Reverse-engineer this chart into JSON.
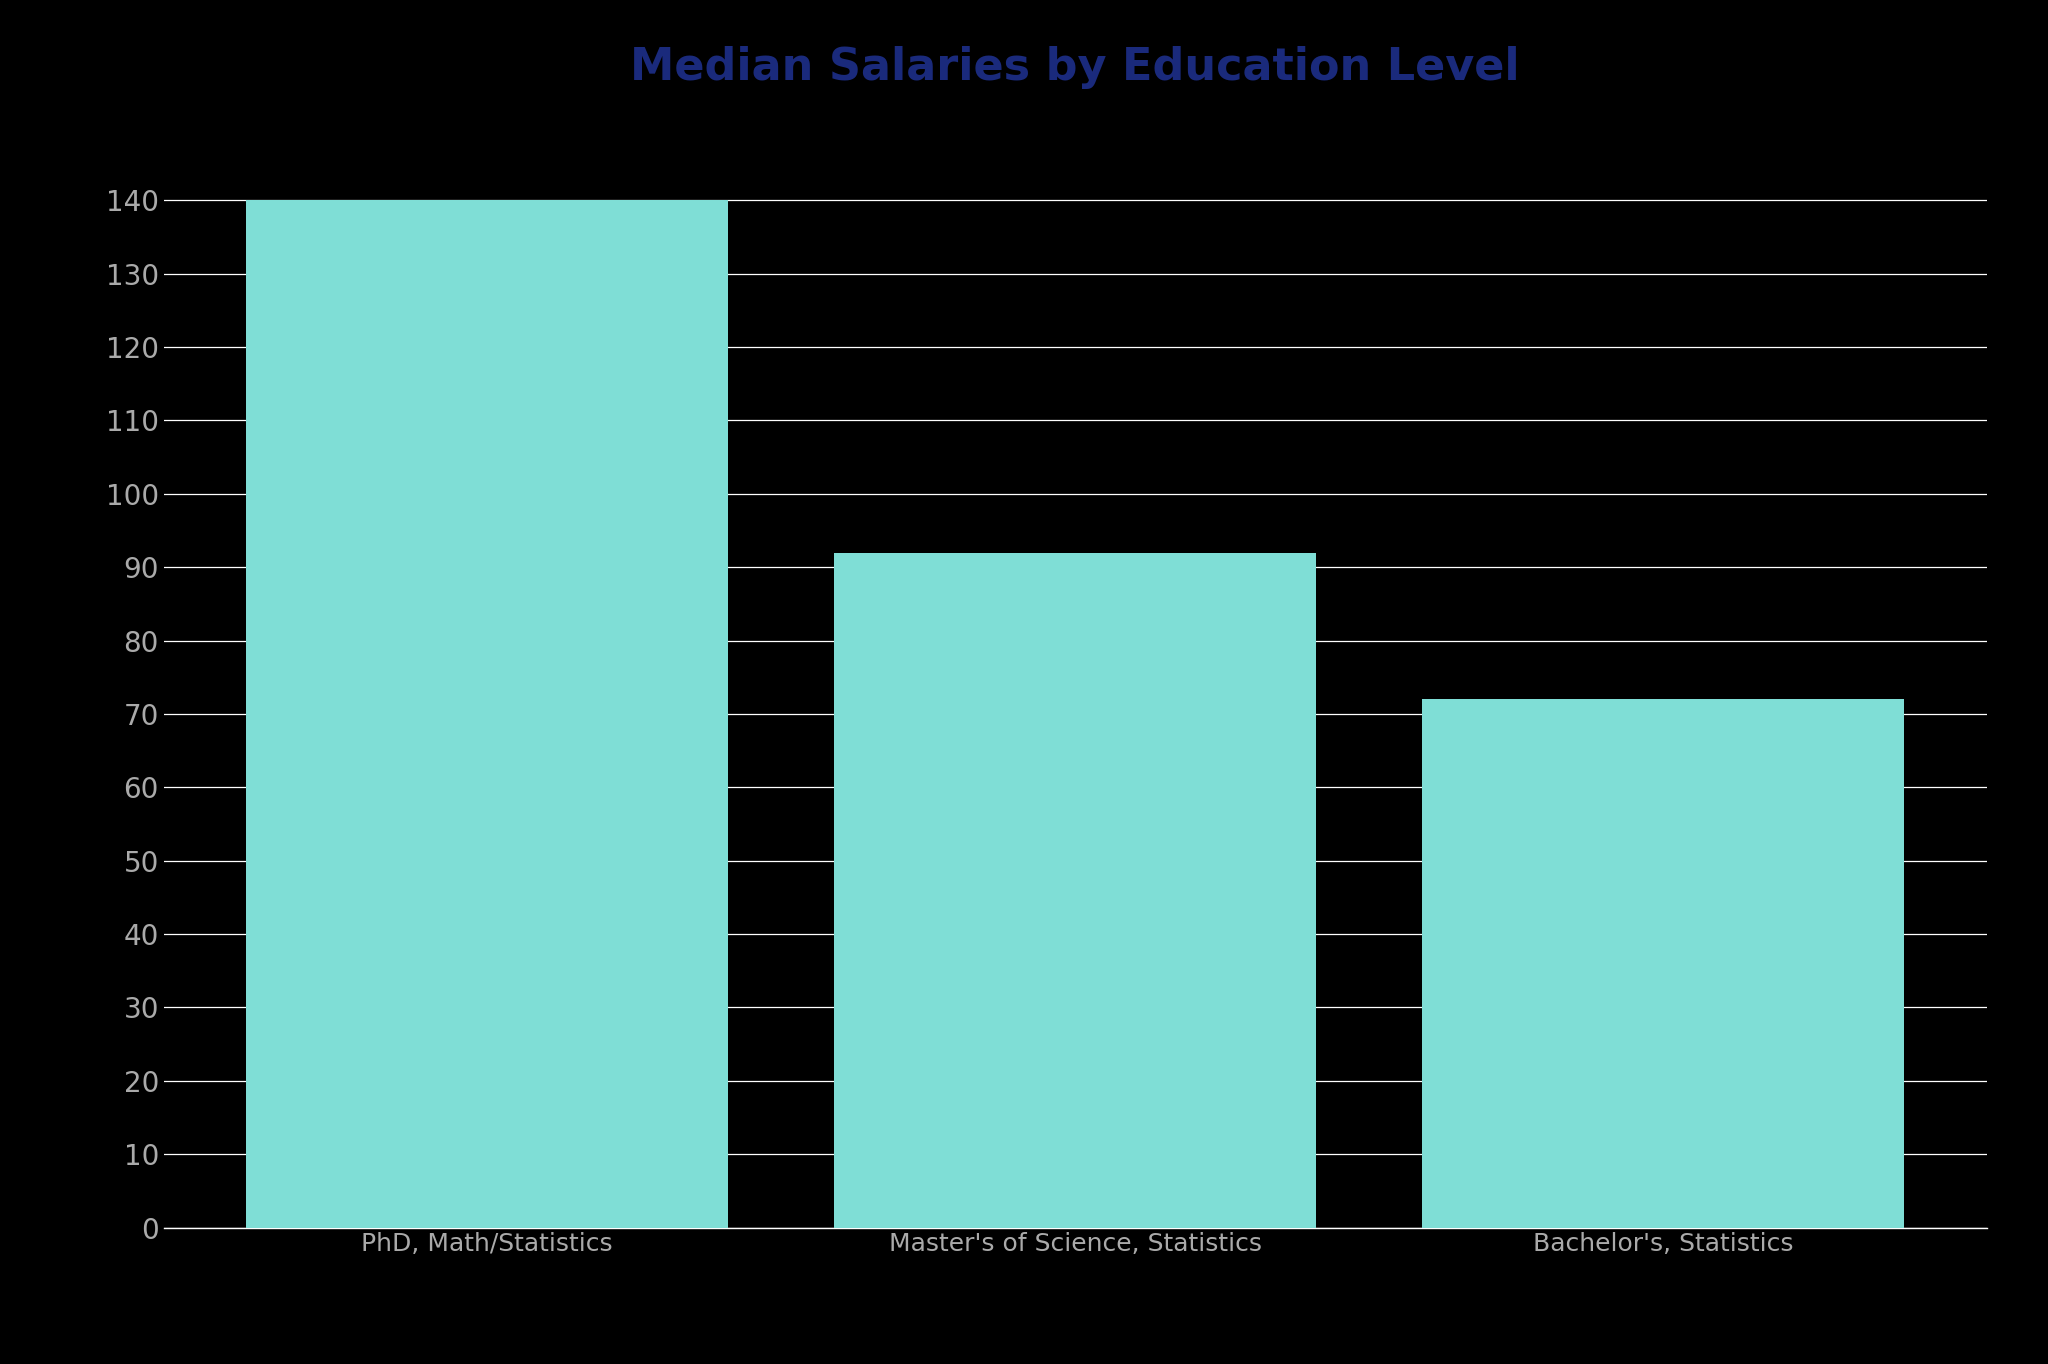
{
  "title": "Median Salaries by Education Level",
  "categories": [
    "PhD, Math/Statistics",
    "Master's of Science, Statistics",
    "Bachelor's, Statistics"
  ],
  "values": [
    140,
    92,
    72
  ],
  "bar_color": "#7FDED6",
  "title_color": "#1a2a7c",
  "background_color": "#000000",
  "plot_bg_color": "#000000",
  "tick_label_color": "#aaaaaa",
  "xlabel_color": "#aaaaaa",
  "grid_color": "#ffffff",
  "ylim": [
    0,
    145
  ],
  "yticks": [
    0,
    10,
    20,
    30,
    40,
    50,
    60,
    70,
    80,
    90,
    100,
    110,
    120,
    130,
    140
  ],
  "title_fontsize": 32,
  "tick_fontsize": 20,
  "xlabel_fontsize": 18,
  "bar_width": 0.82
}
